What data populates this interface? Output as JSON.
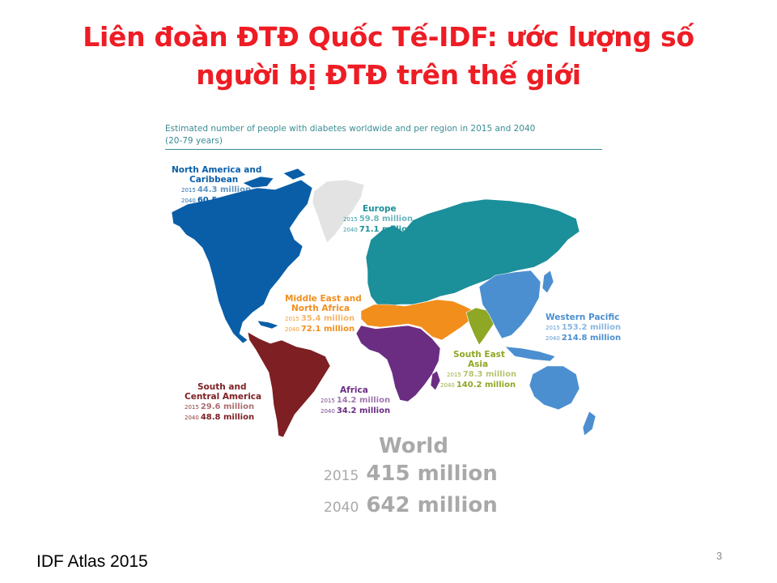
{
  "slide": {
    "title_line1": "Liên đoàn ĐTĐ Quốc Tế-IDF: ước lượng số",
    "title_line2": "người bị ĐTĐ trên thế giới",
    "source": "IDF Atlas 2015",
    "page_number": "3"
  },
  "map": {
    "header_line1": "Estimated number of people with diabetes worldwide and per region in 2015 and 2040",
    "header_line2": "(20-79 years)",
    "colors": {
      "north_america": "#0a5ea8",
      "south_america": "#7d1f23",
      "europe": "#1b8f9a",
      "greenland": "#e3e3e3",
      "mena": "#f28e1c",
      "africa": "#6b2d82",
      "south_east_asia": "#8ea725",
      "western_pacific": "#4b8fd0",
      "world": "#a9a9a9"
    },
    "regions": {
      "north_america": {
        "name_line1": "North America and",
        "name_line2": "Caribbean",
        "y2015": "2015",
        "v2015": "44.3 million",
        "y2040": "2040",
        "v2040": "60.5 million"
      },
      "europe": {
        "name_line1": "Europe",
        "y2015": "2015",
        "v2015": "59.8 million",
        "y2040": "2040",
        "v2040": "71.1 million"
      },
      "mena": {
        "name_line1": "Middle East and",
        "name_line2": "North Africa",
        "y2015": "2015",
        "v2015": "35.4 million",
        "y2040": "2040",
        "v2040": "72.1 million"
      },
      "western_pacific": {
        "name_line1": "Western Pacific",
        "y2015": "2015",
        "v2015": "153.2 million",
        "y2040": "2040",
        "v2040": "214.8 million"
      },
      "south_east_asia": {
        "name_line1": "South East",
        "name_line2": "Asia",
        "y2015": "2015",
        "v2015": "78.3 million",
        "y2040": "2040",
        "v2040": "140.2 million"
      },
      "africa": {
        "name_line1": "Africa",
        "y2015": "2015",
        "v2015": "14.2 million",
        "y2040": "2040",
        "v2040": "34.2 million"
      },
      "south_america": {
        "name_line1": "South and",
        "name_line2": "Central America",
        "y2015": "2015",
        "v2015": "29.6 million",
        "y2040": "2040",
        "v2040": "48.8 million"
      }
    },
    "world": {
      "name": "World",
      "y2015": "2015",
      "v2015": "415 million",
      "y2040": "2040",
      "v2040": "642 million"
    }
  }
}
